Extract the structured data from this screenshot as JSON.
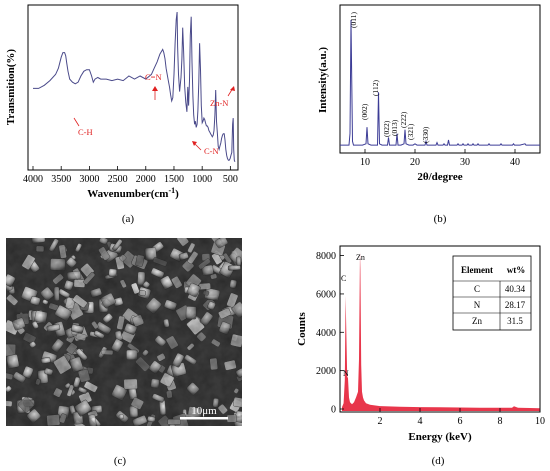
{
  "panels": {
    "a": {
      "label": "(a)",
      "chart_data": {
        "type": "line",
        "ylabel": "Transmition(%)",
        "xlabel": "Wavenumber(cm",
        "xlabel_sup": "-1",
        "xlabel_end": ")",
        "xlim": [
          4000,
          400
        ],
        "x_ticks": [
          4000,
          3500,
          3000,
          2500,
          2000,
          1500,
          1000,
          500
        ],
        "x": [
          4000,
          3900,
          3800,
          3700,
          3600,
          3550,
          3500,
          3470,
          3440,
          3420,
          3400,
          3380,
          3350,
          3300,
          3250,
          3200,
          3150,
          3100,
          3050,
          3000,
          2960,
          2930,
          2900,
          2850,
          2800,
          2700,
          2600,
          2500,
          2400,
          2300,
          2200,
          2100,
          2000,
          1900,
          1850,
          1800,
          1750,
          1700,
          1680,
          1660,
          1640,
          1620,
          1600,
          1580,
          1560,
          1540,
          1520,
          1500,
          1480,
          1460,
          1445,
          1435,
          1420,
          1400,
          1390,
          1375,
          1360,
          1345,
          1330,
          1310,
          1290,
          1270,
          1255,
          1240,
          1225,
          1210,
          1195,
          1180,
          1165,
          1150,
          1135,
          1120,
          1105,
          1090,
          1075,
          1060,
          1045,
          1030,
          1015,
          1000,
          985,
          970,
          955,
          940,
          925,
          910,
          895,
          880,
          865,
          850,
          835,
          820,
          805,
          790,
          775,
          760,
          745,
          730,
          715,
          700,
          685,
          670,
          655,
          640,
          625,
          610,
          595,
          580,
          565,
          550,
          535,
          520,
          505,
          490,
          475,
          460,
          450,
          440,
          430,
          420
        ],
        "y": [
          51,
          51,
          53,
          56,
          60,
          64,
          71,
          74,
          74,
          72,
          67,
          62,
          57,
          55,
          54,
          55,
          59,
          62,
          63,
          63,
          59,
          55,
          57,
          58,
          57,
          57,
          56,
          57,
          56,
          59,
          57,
          59,
          57,
          60,
          64,
          68,
          73,
          76,
          74,
          70,
          64,
          60,
          56,
          52,
          47,
          43,
          45,
          60,
          80,
          95,
          100,
          78,
          60,
          49,
          53,
          58,
          70,
          90,
          75,
          52,
          42,
          36,
          52,
          40,
          56,
          85,
          97,
          68,
          46,
          34,
          28,
          30,
          26,
          28,
          37,
          55,
          80,
          63,
          40,
          29,
          30,
          32,
          31,
          29,
          27,
          27,
          26,
          24,
          23,
          22,
          21,
          20,
          21,
          24,
          34,
          50,
          30,
          22,
          14,
          12,
          14,
          16,
          19,
          21,
          22,
          22,
          18,
          12,
          8,
          6,
          5,
          5,
          6,
          8,
          10,
          28,
          32,
          12,
          5,
          4
        ],
        "annotations": [
          "C-H",
          "C=N",
          "C-N",
          "Zn-N"
        ],
        "grid": false
      }
    },
    "b": {
      "label": "(b)",
      "chart_data": {
        "type": "line",
        "ylabel": "Intensity(a.u.)",
        "xlabel": "2θ/degree",
        "xlim": [
          5,
          45
        ],
        "x_ticks": [
          10,
          20,
          30,
          40
        ],
        "x": [
          5,
          6,
          6.8,
          7,
          7.2,
          7.35,
          7.5,
          7.7,
          8.5,
          9.5,
          10.2,
          10.4,
          10.6,
          11.2,
          12.5,
          12.7,
          12.9,
          13.4,
          14.5,
          14.7,
          14.9,
          15.5,
          16.2,
          16.4,
          16.6,
          17.2,
          17.8,
          18.0,
          18.2,
          18.8,
          19.6,
          20.0,
          20.4,
          21.2,
          22.0,
          22.2,
          22.4,
          23.0,
          24.2,
          24.4,
          24.6,
          25.2,
          25.6,
          25.8,
          26.0,
          26.5,
          26.7,
          26.9,
          27.6,
          28.4,
          28.6,
          28.8,
          29.4,
          29.6,
          29.8,
          30.4,
          30.6,
          30.8,
          31.4,
          31.6,
          31.8,
          32.4,
          32.6,
          32.8,
          33.6,
          34.6,
          34.8,
          35.0,
          36.0,
          37.0,
          37.2,
          37.4,
          38.5,
          39.5,
          39.7,
          39.9,
          41,
          42,
          42.2,
          42.4,
          43.5,
          45
        ],
        "y": [
          3,
          3,
          3,
          12,
          100,
          50,
          6,
          3,
          3,
          3,
          4,
          17,
          4,
          3,
          3,
          44,
          4,
          3,
          3,
          9,
          3,
          3,
          3,
          12,
          3,
          3,
          4,
          15,
          4,
          3,
          3,
          4,
          3,
          3,
          3,
          6,
          3,
          3,
          3,
          5,
          3,
          3,
          3,
          4,
          3,
          3,
          7,
          3,
          3,
          3,
          4,
          3,
          3,
          4,
          3,
          3,
          4,
          3,
          3,
          4,
          3,
          3,
          4,
          3,
          3,
          3,
          4,
          3,
          3,
          3,
          4,
          3,
          3,
          3,
          4,
          3,
          3,
          4,
          3,
          3,
          3,
          3
        ],
        "peak_labels": [
          "(011)",
          "(002)",
          "(112)",
          "(022)",
          "(013)",
          "(222)",
          "(321)",
          "(330)"
        ]
      }
    },
    "c": {
      "label": "(c)",
      "scale_bar": "10μm"
    },
    "d": {
      "label": "(d)",
      "chart_data": {
        "type": "area",
        "ylabel": "Counts",
        "xlabel": "Energy (keV)",
        "xlim": [
          0,
          10
        ],
        "ylim": [
          0,
          8500
        ],
        "x_ticks": [
          2,
          4,
          6,
          8,
          10
        ],
        "y_ticks": [
          0,
          2000,
          4000,
          6000,
          8000
        ],
        "x": [
          0.1,
          0.18,
          0.24,
          0.28,
          0.32,
          0.36,
          0.4,
          0.45,
          0.5,
          0.6,
          0.7,
          0.8,
          0.9,
          0.95,
          1.0,
          1.02,
          1.06,
          1.1,
          1.15,
          1.2,
          1.3,
          1.5,
          2,
          3,
          4,
          5,
          6,
          7,
          8,
          8.6,
          8.7,
          8.9,
          9.5,
          10
        ],
        "y": [
          100,
          300,
          1500,
          5900,
          3800,
          1700,
          1600,
          600,
          350,
          250,
          350,
          600,
          900,
          2600,
          8200,
          7300,
          2300,
          900,
          600,
          450,
          300,
          220,
          150,
          120,
          100,
          90,
          80,
          70,
          60,
          60,
          140,
          60,
          50,
          40
        ],
        "peak_labels": [
          "C",
          "N",
          "Zn"
        ],
        "table": {
          "headers": [
            "Element",
            "wt%"
          ],
          "rows": [
            [
              "C",
              "40.34"
            ],
            [
              "N",
              "28.17"
            ],
            [
              "Zn",
              "31.5"
            ]
          ]
        }
      }
    }
  },
  "colors": {
    "ftir_line": "#4a4a8a",
    "xrd_line": "#3c3c96",
    "edx_fill": "#e8364b",
    "annotation": "#e02020"
  }
}
